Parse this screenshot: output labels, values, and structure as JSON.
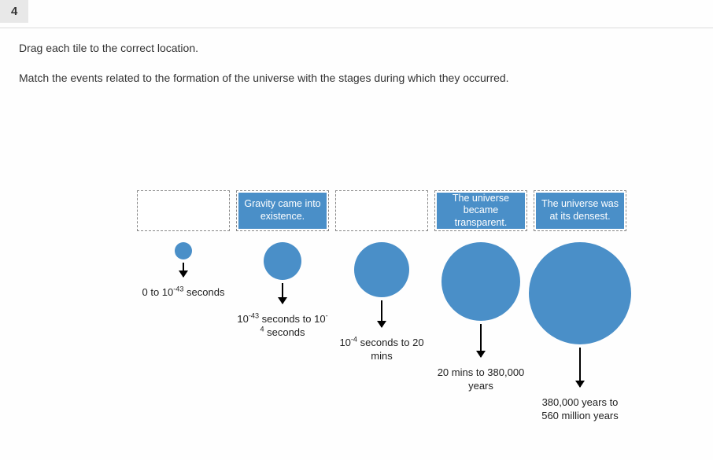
{
  "question": {
    "number": "4",
    "instruction": "Drag each tile to the correct location.",
    "prompt": "Match the events related to the formation of the universe with the stages during which they occurred."
  },
  "colors": {
    "circle_fill": "#4a8fc8",
    "tile_fill": "#4a8fc8",
    "tile_text": "#ffffff",
    "drop_border": "#888888",
    "background": "#fefefe"
  },
  "tiles": {
    "gravity": "Gravity came into existence.",
    "transparent": "The universe became transparent.",
    "densest": "The universe was at its densest."
  },
  "stages": [
    {
      "id": "s1",
      "circle_diameter": 22,
      "label_html": "0 to 10<sup>-43</sup> seconds",
      "tile": null
    },
    {
      "id": "s2",
      "circle_diameter": 48,
      "label_html": "10<sup>-43</sup> seconds to 10<sup>-4</sup> seconds",
      "tile": "gravity"
    },
    {
      "id": "s3",
      "circle_diameter": 70,
      "label_html": "10<sup>-4</sup> seconds to 20 mins",
      "tile": null
    },
    {
      "id": "s4",
      "circle_diameter": 100,
      "label_html": "20 mins to 380,000 years",
      "tile": "transparent"
    },
    {
      "id": "s5",
      "circle_diameter": 130,
      "label_html": "380,000 years to 560 million years",
      "tile": "densest"
    }
  ],
  "layout": {
    "drop_width": 118,
    "drop_height": 52,
    "drop_gap": 8,
    "centers_x": [
      59,
      185,
      311,
      437,
      563
    ],
    "circles_top_gap": 14,
    "arrow_gap": 4,
    "arrow_len_base": 18,
    "label_gap": 8
  }
}
